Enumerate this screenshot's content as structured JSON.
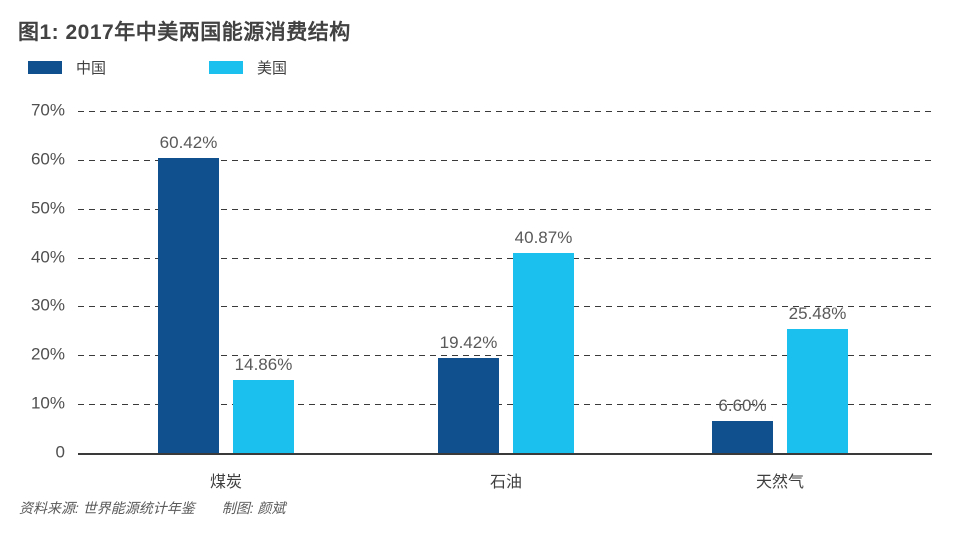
{
  "title": "图1: 2017年中美两国能源消费结构",
  "legend": [
    {
      "label": "中国",
      "color": "#11508e"
    },
    {
      "label": "美国",
      "color": "#1cc0ef"
    }
  ],
  "footer": {
    "source": "资料来源: 世界能源统计年鉴",
    "credit": "制图: 颜斌"
  },
  "chart_data": {
    "type": "bar",
    "title": "图1: 2017年中美两国能源消费结构",
    "categories": [
      "煤炭",
      "石油",
      "天然气"
    ],
    "series": [
      {
        "name": "中国",
        "color": "#11508e",
        "values": [
          60.42,
          19.42,
          6.6
        ],
        "labels": [
          "60.42%",
          "19.42%",
          "6.60%"
        ]
      },
      {
        "name": "美国",
        "color": "#1cc0ef",
        "values": [
          14.86,
          40.87,
          25.48
        ],
        "labels": [
          "14.86%",
          "40.87%",
          "25.48%"
        ]
      }
    ],
    "xlabel": "",
    "ylabel": "",
    "ylim": [
      0,
      70
    ],
    "yticks": [
      "70%",
      "60%",
      "50%",
      "40%",
      "30%",
      "20%",
      "10%",
      "0"
    ],
    "grid": "horizontal-dashed",
    "legend_position": "top-left"
  }
}
